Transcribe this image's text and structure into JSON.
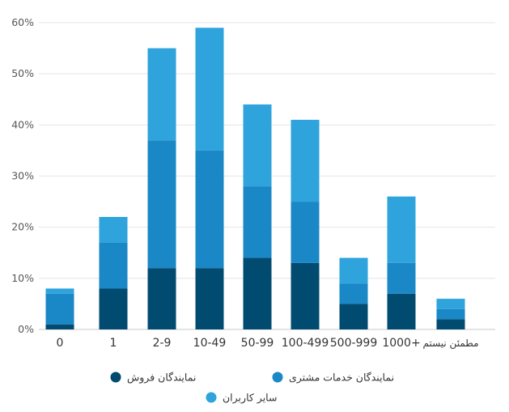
{
  "chart_data": {
    "type": "bar",
    "stacked": true,
    "categories": [
      "0",
      "1",
      "2-9",
      "10-49",
      "50-99",
      "100-499",
      "500-999",
      "1000+",
      "مطمئن نیستم"
    ],
    "series": [
      {
        "name": "نمایندگان فروش",
        "color": "#024b70",
        "values": [
          1,
          8,
          12,
          12,
          14,
          13,
          5,
          7,
          2
        ]
      },
      {
        "name": "نمایندگان خدمات مشتری",
        "color": "#1a87c6",
        "values": [
          6,
          9,
          25,
          23,
          14,
          12,
          4,
          6,
          2
        ]
      },
      {
        "name": "سایر کاربران",
        "color": "#2ea3dc",
        "values": [
          1,
          5,
          18,
          24,
          16,
          16,
          5,
          13,
          2
        ]
      }
    ],
    "yticks": [
      "0%",
      "10%",
      "20%",
      "30%",
      "40%",
      "50%",
      "60%"
    ],
    "ylim": [
      0,
      60
    ],
    "grid": true,
    "legend_position": "bottom"
  }
}
